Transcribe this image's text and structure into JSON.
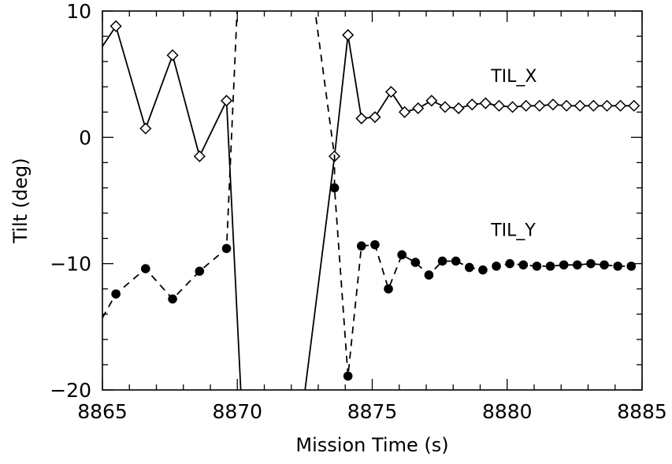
{
  "chart_data": {
    "type": "line",
    "title": "",
    "xlabel": "Mission Time (s)",
    "ylabel": "Tilt (deg)",
    "xlim": [
      8865,
      8885
    ],
    "ylim": [
      -20,
      10
    ],
    "x_ticks": [
      8865,
      8870,
      8875,
      8880,
      8885
    ],
    "x_tick_labels": [
      "8865",
      "8870",
      "8875",
      "8880",
      "8885"
    ],
    "y_ticks": [
      -20,
      -10,
      0,
      10
    ],
    "y_tick_labels": [
      "−20",
      "−10",
      "0",
      "10"
    ],
    "grid": false,
    "series": [
      {
        "name": "TIL_X",
        "line_style": "solid",
        "marker": "open-diamond",
        "line_only": [
          [
            8865,
            7.2
          ],
          [
            8870.15,
            -21
          ]
        ],
        "line_only_2": [
          [
            8872.45,
            -21
          ],
          [
            8873.6,
            -1.5
          ]
        ],
        "points": [
          [
            8865.5,
            8.8
          ],
          [
            8866.6,
            0.7
          ],
          [
            8867.6,
            6.5
          ],
          [
            8868.6,
            -1.5
          ],
          [
            8869.6,
            2.9
          ],
          [
            8873.6,
            -1.5
          ],
          [
            8874.1,
            8.1
          ],
          [
            8874.6,
            1.5
          ],
          [
            8875.1,
            1.6
          ],
          [
            8875.7,
            3.6
          ],
          [
            8876.2,
            2.0
          ],
          [
            8876.7,
            2.3
          ],
          [
            8877.2,
            2.9
          ],
          [
            8877.7,
            2.4
          ],
          [
            8878.2,
            2.3
          ],
          [
            8878.7,
            2.6
          ],
          [
            8879.2,
            2.7
          ],
          [
            8879.7,
            2.5
          ],
          [
            8880.2,
            2.4
          ],
          [
            8880.7,
            2.5
          ],
          [
            8881.2,
            2.5
          ],
          [
            8881.7,
            2.6
          ],
          [
            8882.2,
            2.5
          ],
          [
            8882.7,
            2.5
          ],
          [
            8883.2,
            2.5
          ],
          [
            8883.7,
            2.5
          ],
          [
            8884.2,
            2.5
          ],
          [
            8884.7,
            2.5
          ]
        ]
      },
      {
        "name": "TIL_Y",
        "line_style": "dashed",
        "marker": "filled-circle",
        "line_only": [
          [
            8865,
            -14.3
          ],
          [
            8869.6,
            -8.8
          ],
          [
            8870,
            10.5
          ]
        ],
        "line_only_2": [
          [
            8872.85,
            10.5
          ],
          [
            8873.6,
            -1.5
          ],
          [
            8873.6,
            -4.0
          ]
        ],
        "points": [
          [
            8865.5,
            -12.4
          ],
          [
            8866.6,
            -10.4
          ],
          [
            8867.6,
            -12.8
          ],
          [
            8868.6,
            -10.6
          ],
          [
            8869.6,
            -8.8
          ],
          [
            8873.6,
            -4.0
          ],
          [
            8874.1,
            -18.9
          ],
          [
            8874.6,
            -8.6
          ],
          [
            8875.1,
            -8.5
          ],
          [
            8875.6,
            -12.0
          ],
          [
            8876.1,
            -9.3
          ],
          [
            8876.6,
            -9.9
          ],
          [
            8877.1,
            -10.9
          ],
          [
            8877.6,
            -9.8
          ],
          [
            8878.1,
            -9.8
          ],
          [
            8878.6,
            -10.3
          ],
          [
            8879.1,
            -10.5
          ],
          [
            8879.6,
            -10.2
          ],
          [
            8880.1,
            -10.0
          ],
          [
            8880.6,
            -10.1
          ],
          [
            8881.1,
            -10.2
          ],
          [
            8881.6,
            -10.2
          ],
          [
            8882.1,
            -10.1
          ],
          [
            8882.6,
            -10.1
          ],
          [
            8883.1,
            -10.0
          ],
          [
            8883.6,
            -10.1
          ],
          [
            8884.1,
            -10.2
          ],
          [
            8884.6,
            -10.2
          ]
        ]
      }
    ],
    "annotations": [
      {
        "text": "TIL_X",
        "x": 8879.4,
        "y": 4.4
      },
      {
        "text": "TIL_Y",
        "x": 8879.4,
        "y": -7.8
      }
    ]
  }
}
